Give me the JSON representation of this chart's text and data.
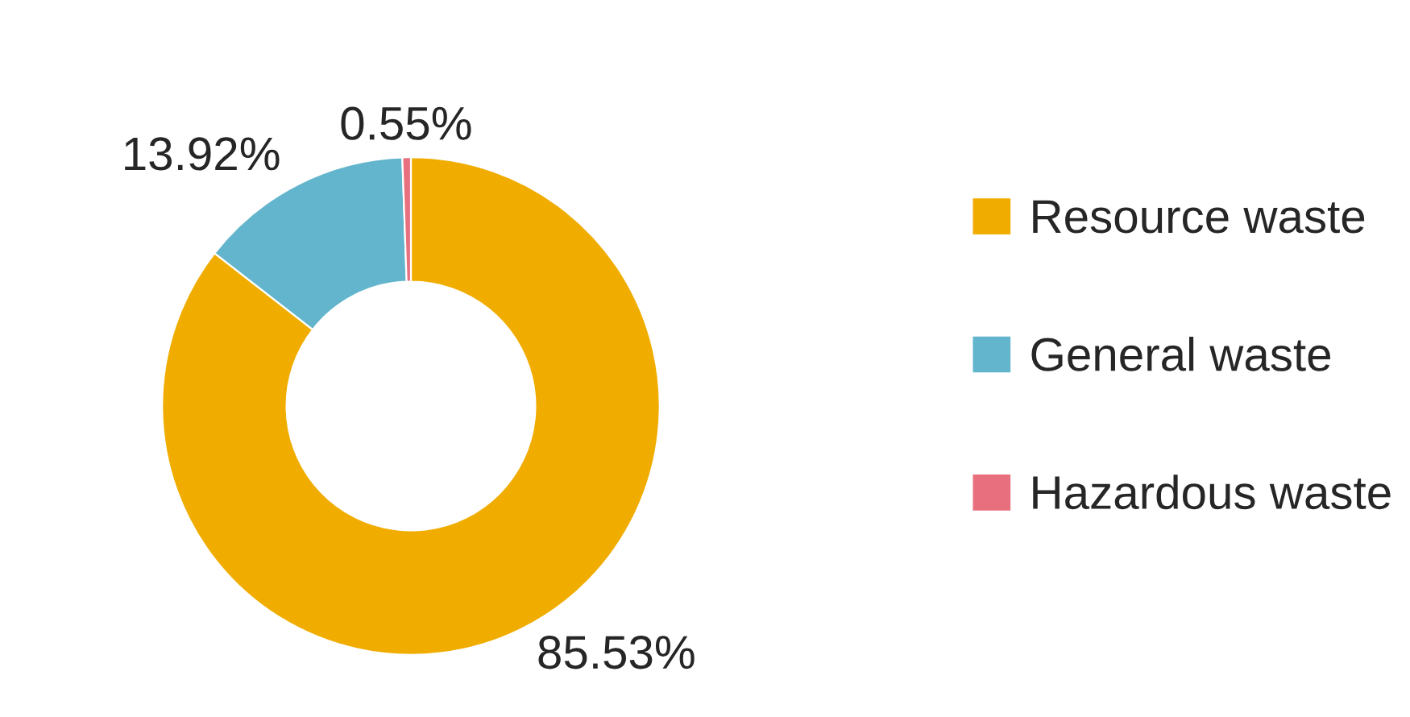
{
  "chart_data": {
    "type": "donut",
    "categories": [
      "Resource waste",
      "General waste",
      "Hazardous waste"
    ],
    "values": [
      85.53,
      13.92,
      0.55
    ],
    "colors": [
      "#f0ad00",
      "#62b5cc",
      "#e8707e"
    ],
    "value_labels": [
      "85.53%",
      "13.92%",
      "0.55%"
    ],
    "legend": "right"
  }
}
